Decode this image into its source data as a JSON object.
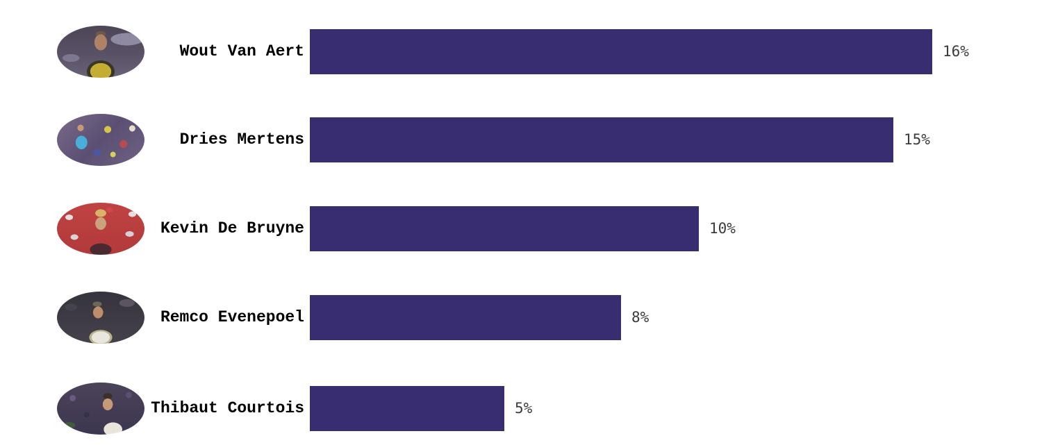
{
  "chart_data": {
    "type": "bar",
    "orientation": "horizontal",
    "title": "",
    "categories": [
      "Wout Van Aert",
      "Dries Mertens",
      "Kevin De Bruyne",
      "Remco Evenepoel",
      "Thibaut Courtois"
    ],
    "values": [
      16,
      15,
      10,
      8,
      5
    ],
    "value_labels": [
      "16%",
      "15%",
      "10%",
      "8%",
      "5%"
    ],
    "xlabel": "",
    "ylabel": "",
    "xlim": [
      0,
      16
    ],
    "grid": false,
    "legend": "none",
    "bar_color": "#382d6f",
    "value_label_color": "#3b3b3b",
    "category_label_color": "#000000"
  },
  "rows": [
    {
      "name": "Wout Van Aert",
      "value": 16,
      "value_label": "16%",
      "photo": "wout-van-aert-photo"
    },
    {
      "name": "Dries Mertens",
      "value": 15,
      "value_label": "15%",
      "photo": "dries-mertens-photo"
    },
    {
      "name": "Kevin De Bruyne",
      "value": 10,
      "value_label": "10%",
      "photo": "kevin-de-bruyne-photo"
    },
    {
      "name": "Remco Evenepoel",
      "value": 8,
      "value_label": "8%",
      "photo": "remco-evenepoel-photo"
    },
    {
      "name": "Thibaut Courtois",
      "value": 5,
      "value_label": "5%",
      "photo": "thibaut-courtois-photo"
    }
  ]
}
